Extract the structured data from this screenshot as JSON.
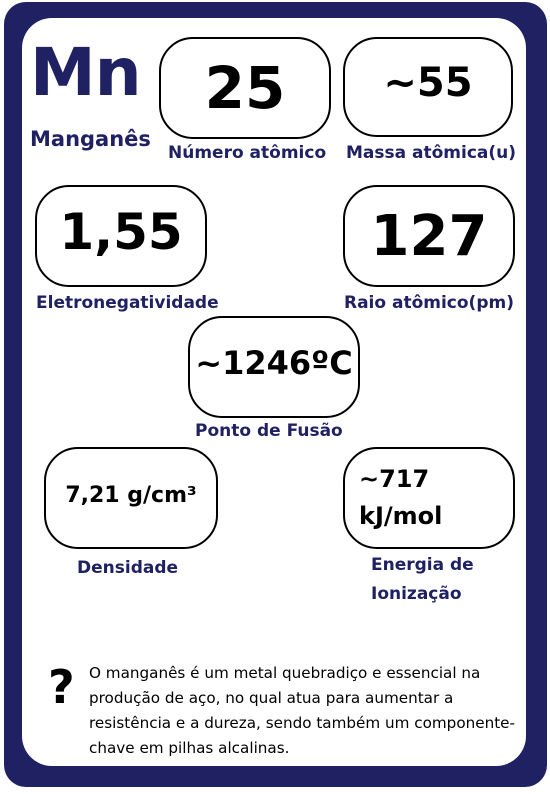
{
  "element": {
    "symbol": "Mn",
    "name": "Manganês"
  },
  "properties": {
    "atomic_number": {
      "value": "25",
      "label": "Número atômico"
    },
    "atomic_mass": {
      "value": "~55",
      "label": "Massa atômica(u)"
    },
    "electronegativity": {
      "value": "1,55",
      "label": "Eletronegatividade"
    },
    "atomic_radius": {
      "value": "127",
      "label": "Raio atômico(pm)"
    },
    "melting_point": {
      "value": "~1246ºC",
      "label": "Ponto de Fusão"
    },
    "density": {
      "value": "7,21 g/cm³",
      "label": "Densidade"
    },
    "ionization_energy": {
      "value_line1": "~717",
      "value_line2": "kJ/mol",
      "label_line1": "Energia de",
      "label_line2": "Ionização"
    }
  },
  "info": {
    "icon": "question-mark-icon",
    "icon_glyph": "?",
    "text": "O manganês é um metal quebradiço e essencial na produção de aço, no qual atua para aumentar a resistência e a dureza, sendo também um componente-chave em pilhas alcalinas."
  },
  "colors": {
    "frame": "#1f2163",
    "label": "#1f2163",
    "box_border": "#000000"
  }
}
